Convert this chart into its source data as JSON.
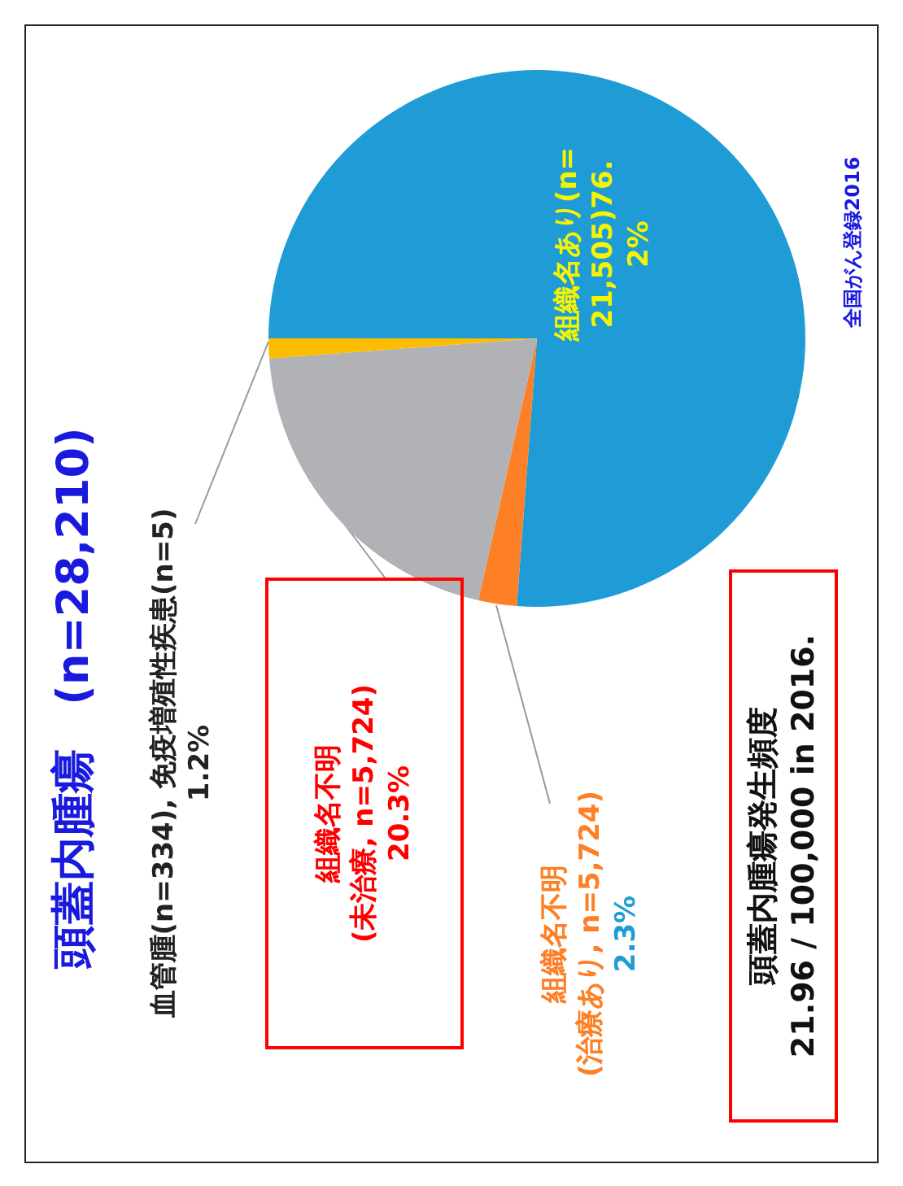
{
  "chart_data": {
    "type": "pie",
    "title": "頭蓋内腫瘍　(n=28,210)",
    "categories": [
      "組織名あり(n=21,505)",
      "組織名不明\n(治療あり, n=5,724)",
      "組織名不明\n(未治療, n=5,724)",
      "血管腫(n=334), 免疫増殖性疾患(n=5)"
    ],
    "values": [
      76.2,
      2.3,
      20.3,
      1.2
    ],
    "value_labels": [
      "76.2%",
      "2.3%",
      "20.3%",
      "1.2%"
    ],
    "colors": [
      "#1f9cd5",
      "#fd7f26",
      "#b1b2b5",
      "#fcbd00"
    ],
    "legend": false,
    "annotations": [
      "頭蓋内腫瘍発生頻度\n21.96 / 100,000 in 2016.",
      "全国がん登録2016"
    ]
  }
}
